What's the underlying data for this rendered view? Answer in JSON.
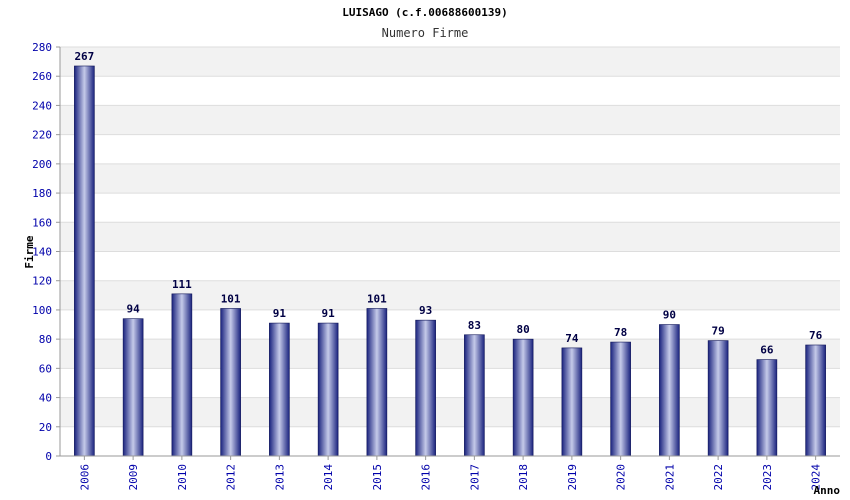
{
  "chart_data": {
    "type": "bar",
    "title": "LUISAGO (c.f.00688600139)",
    "subtitle": "Numero Firme",
    "xlabel": "Anno",
    "ylabel": "Firme",
    "categories": [
      "2006",
      "2009",
      "2010",
      "2012",
      "2013",
      "2014",
      "2015",
      "2016",
      "2017",
      "2018",
      "2019",
      "2020",
      "2021",
      "2022",
      "2023",
      "2024"
    ],
    "values": [
      267,
      94,
      111,
      101,
      91,
      91,
      101,
      93,
      83,
      80,
      74,
      78,
      90,
      79,
      66,
      76
    ],
    "ylim": [
      0,
      280
    ],
    "yticks": [
      0,
      20,
      40,
      60,
      80,
      100,
      120,
      140,
      160,
      180,
      200,
      220,
      240,
      260,
      280
    ],
    "grid": true,
    "colors": {
      "bar_dark": "#1a237e",
      "bar_light": "#c5cae9",
      "band": "#f2f2f2",
      "tick_text": "#0000aa",
      "value_text": "#000044"
    }
  }
}
